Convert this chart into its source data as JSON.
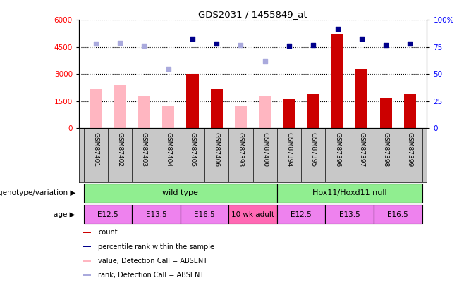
{
  "title": "GDS2031 / 1455849_at",
  "samples": [
    "GSM87401",
    "GSM87402",
    "GSM87403",
    "GSM87404",
    "GSM87405",
    "GSM87406",
    "GSM87393",
    "GSM87400",
    "GSM87394",
    "GSM87395",
    "GSM87396",
    "GSM87397",
    "GSM87398",
    "GSM87399"
  ],
  "count_present": [
    null,
    null,
    null,
    null,
    3000,
    2200,
    null,
    null,
    1600,
    1900,
    5200,
    3300,
    1700,
    1900
  ],
  "count_absent": [
    2200,
    2400,
    1750,
    1200,
    null,
    null,
    1200,
    1800,
    null,
    null,
    null,
    null,
    null,
    null
  ],
  "rank_present_pct": [
    null,
    null,
    null,
    null,
    83,
    78,
    null,
    null,
    76,
    77,
    92,
    83,
    77,
    78
  ],
  "rank_absent_pct": [
    78,
    79,
    76,
    55,
    null,
    null,
    77,
    62,
    null,
    null,
    null,
    null,
    null,
    null
  ],
  "ylim_left": [
    0,
    6000
  ],
  "ylim_right": [
    0,
    100
  ],
  "yticks_left": [
    0,
    1500,
    3000,
    4500,
    6000
  ],
  "yticks_right": [
    0,
    25,
    50,
    75,
    100
  ],
  "genotype_groups": [
    {
      "label": "wild type",
      "start": 0,
      "end": 8,
      "color": "#90EE90"
    },
    {
      "label": "Hox11/Hoxd11 null",
      "start": 8,
      "end": 14,
      "color": "#90EE90"
    }
  ],
  "age_groups": [
    {
      "label": "E12.5",
      "start": 0,
      "end": 2,
      "color": "#EE82EE"
    },
    {
      "label": "E13.5",
      "start": 2,
      "end": 4,
      "color": "#EE82EE"
    },
    {
      "label": "E16.5",
      "start": 4,
      "end": 6,
      "color": "#EE82EE"
    },
    {
      "label": "10 wk adult",
      "start": 6,
      "end": 8,
      "color": "#FF69B4"
    },
    {
      "label": "E12.5",
      "start": 8,
      "end": 10,
      "color": "#EE82EE"
    },
    {
      "label": "E13.5",
      "start": 10,
      "end": 12,
      "color": "#EE82EE"
    },
    {
      "label": "E16.5",
      "start": 12,
      "end": 14,
      "color": "#EE82EE"
    }
  ],
  "present_bar_color": "#CC0000",
  "absent_bar_color": "#FFB6C1",
  "present_rank_color": "#00008B",
  "absent_rank_color": "#AAAADD",
  "sample_area_color": "#C8C8C8",
  "bg_color": "#FFFFFF"
}
